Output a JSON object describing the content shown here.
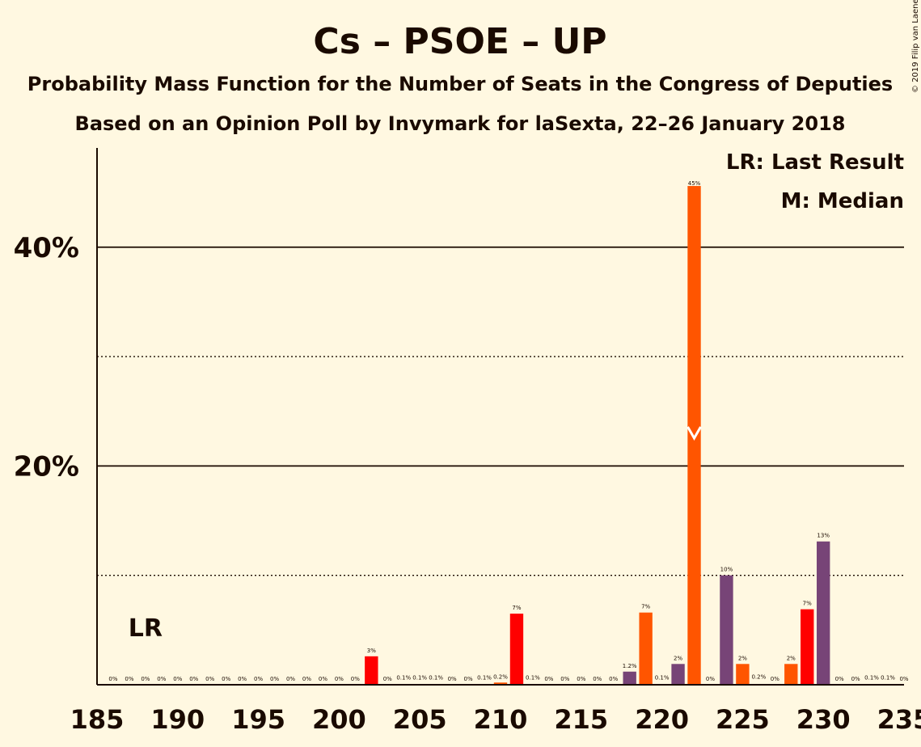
{
  "chart_data": {
    "type": "bar",
    "title": "Cs – PSOE – UP",
    "subtitle1": "Probability Mass Function for the Number of Seats in the Congress of Deputies",
    "subtitle2": "Based on an Opinion Poll by Invymark for laSexta, 22–26 January 2018",
    "copyright": "© 2019 Filip van Laenen",
    "legend": [
      "LR: Last Result",
      "M: Median"
    ],
    "legend_position": "top-right",
    "lr_label": "LR",
    "x_min": 185,
    "x_max": 235,
    "x_ticks": [
      "185",
      "190",
      "195",
      "200",
      "205",
      "210",
      "215",
      "220",
      "225",
      "230",
      "235"
    ],
    "y_ticks": [
      "20%",
      "40%"
    ],
    "y_max": 0.49,
    "median_seat": 222,
    "last_result_seat": 188,
    "colors": {
      "red": "#FF0000",
      "orange": "#FF5500",
      "purple": "#774477",
      "background": "#FFF8E1",
      "text": "#1a0a00"
    },
    "bars": [
      {
        "seat": 186,
        "value": 0,
        "label": "0%"
      },
      {
        "seat": 187,
        "value": 0,
        "label": "0%"
      },
      {
        "seat": 188,
        "value": 0,
        "label": "0%"
      },
      {
        "seat": 189,
        "value": 0,
        "label": "0%"
      },
      {
        "seat": 190,
        "value": 0,
        "label": "0%"
      },
      {
        "seat": 191,
        "value": 0,
        "label": "0%"
      },
      {
        "seat": 192,
        "value": 0,
        "label": "0%"
      },
      {
        "seat": 193,
        "value": 0,
        "label": "0%"
      },
      {
        "seat": 194,
        "value": 0,
        "label": "0%"
      },
      {
        "seat": 195,
        "value": 0,
        "label": "0%"
      },
      {
        "seat": 196,
        "value": 0,
        "label": "0%"
      },
      {
        "seat": 197,
        "value": 0,
        "label": "0%"
      },
      {
        "seat": 198,
        "value": 0,
        "label": "0%"
      },
      {
        "seat": 199,
        "value": 0,
        "label": "0%"
      },
      {
        "seat": 200,
        "value": 0,
        "label": "0%"
      },
      {
        "seat": 201,
        "value": 0,
        "label": "0%"
      },
      {
        "seat": 202,
        "value": 0.026,
        "label": "3%",
        "color": "red"
      },
      {
        "seat": 203,
        "value": 0,
        "label": "0%"
      },
      {
        "seat": 204,
        "value": 0.001,
        "label": "0.1%"
      },
      {
        "seat": 205,
        "value": 0.001,
        "label": "0.1%"
      },
      {
        "seat": 206,
        "value": 0.001,
        "label": "0.1%"
      },
      {
        "seat": 207,
        "value": 0,
        "label": "0%"
      },
      {
        "seat": 208,
        "value": 0,
        "label": "0%"
      },
      {
        "seat": 209,
        "value": 0.001,
        "label": "0.1%"
      },
      {
        "seat": 210,
        "value": 0.002,
        "label": "0.2%",
        "color": "orange"
      },
      {
        "seat": 211,
        "value": 0.065,
        "label": "7%",
        "color": "red"
      },
      {
        "seat": 212,
        "value": 0.001,
        "label": "0.1%"
      },
      {
        "seat": 213,
        "value": 0,
        "label": "0%"
      },
      {
        "seat": 214,
        "value": 0,
        "label": "0%"
      },
      {
        "seat": 215,
        "value": 0,
        "label": "0%"
      },
      {
        "seat": 216,
        "value": 0,
        "label": "0%"
      },
      {
        "seat": 217,
        "value": 0,
        "label": "0%"
      },
      {
        "seat": 218,
        "value": 0.012,
        "label": "1.2%",
        "color": "purple"
      },
      {
        "seat": 219,
        "value": 0.066,
        "label": "7%",
        "color": "orange"
      },
      {
        "seat": 220,
        "value": 0.001,
        "label": "0.1%"
      },
      {
        "seat": 221,
        "value": 0.019,
        "label": "2%",
        "color": "purple"
      },
      {
        "seat": 222,
        "value": 0.453,
        "label": "45%",
        "color": "orange"
      },
      {
        "seat": 223,
        "value": 0,
        "label": "0%"
      },
      {
        "seat": 224,
        "value": 0.1,
        "label": "10%",
        "color": "purple"
      },
      {
        "seat": 225,
        "value": 0.019,
        "label": "2%",
        "color": "orange"
      },
      {
        "seat": 226,
        "value": 0.002,
        "label": "0.2%"
      },
      {
        "seat": 227,
        "value": 0,
        "label": "0%"
      },
      {
        "seat": 228,
        "value": 0.019,
        "label": "2%",
        "color": "orange"
      },
      {
        "seat": 229,
        "value": 0.069,
        "label": "7%",
        "color": "red"
      },
      {
        "seat": 230,
        "value": 0.131,
        "label": "13%",
        "color": "purple"
      },
      {
        "seat": 231,
        "value": 0,
        "label": "0%"
      },
      {
        "seat": 232,
        "value": 0,
        "label": "0%"
      },
      {
        "seat": 233,
        "value": 0.001,
        "label": "0.1%"
      },
      {
        "seat": 234,
        "value": 0.001,
        "label": "0.1%"
      },
      {
        "seat": 235,
        "value": 0,
        "label": "0%"
      }
    ]
  }
}
